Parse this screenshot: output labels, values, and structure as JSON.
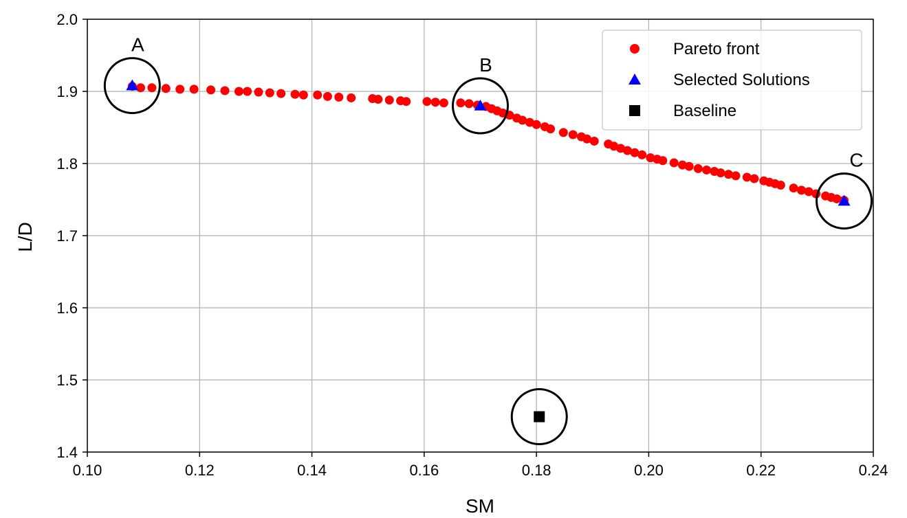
{
  "chart_data": {
    "type": "scatter",
    "title": "",
    "xlabel": "SM",
    "ylabel": "L/D",
    "xlim": [
      0.1,
      0.24
    ],
    "ylim": [
      1.4,
      2.0
    ],
    "xticks": [
      "0.10",
      "0.12",
      "0.14",
      "0.16",
      "0.18",
      "0.20",
      "0.22",
      "0.24"
    ],
    "yticks": [
      "1.4",
      "1.5",
      "1.6",
      "1.7",
      "1.8",
      "1.9",
      "2.0"
    ],
    "grid": true,
    "legend_position": "top-right",
    "colors": {
      "pareto": "#ff0000",
      "selected": "#0000ff",
      "baseline": "#000000"
    },
    "series": [
      {
        "name": "Pareto front",
        "marker": "circle",
        "x": [
          0.108,
          0.1095,
          0.1115,
          0.114,
          0.1165,
          0.119,
          0.122,
          0.1245,
          0.127,
          0.1285,
          0.1305,
          0.1325,
          0.1345,
          0.137,
          0.1385,
          0.141,
          0.1428,
          0.1448,
          0.147,
          0.1508,
          0.1518,
          0.1538,
          0.1558,
          0.1568,
          0.1605,
          0.162,
          0.1635,
          0.1665,
          0.168,
          0.1695,
          0.171,
          0.172,
          0.173,
          0.174,
          0.1752,
          0.1765,
          0.1775,
          0.1788,
          0.18,
          0.1815,
          0.1825,
          0.1848,
          0.1865,
          0.188,
          0.189,
          0.1903,
          0.1928,
          0.1938,
          0.195,
          0.1962,
          0.1975,
          0.1988,
          0.2003,
          0.2015,
          0.2025,
          0.2045,
          0.206,
          0.2072,
          0.2088,
          0.2103,
          0.2117,
          0.2128,
          0.2142,
          0.2155,
          0.2175,
          0.2188,
          0.2205,
          0.2215,
          0.2225,
          0.2235,
          0.2258,
          0.2272,
          0.2285,
          0.2298,
          0.2315,
          0.2325,
          0.2335,
          0.2348
        ],
        "y": [
          1.907,
          1.905,
          1.905,
          1.904,
          1.903,
          1.903,
          1.902,
          1.901,
          1.9,
          1.9,
          1.899,
          1.898,
          1.897,
          1.896,
          1.895,
          1.895,
          1.893,
          1.892,
          1.891,
          1.89,
          1.889,
          1.888,
          1.887,
          1.886,
          1.886,
          1.885,
          1.884,
          1.884,
          1.883,
          1.881,
          1.879,
          1.876,
          1.873,
          1.87,
          1.867,
          1.863,
          1.86,
          1.857,
          1.854,
          1.851,
          1.848,
          1.843,
          1.84,
          1.837,
          1.834,
          1.831,
          1.827,
          1.824,
          1.821,
          1.818,
          1.815,
          1.812,
          1.808,
          1.806,
          1.804,
          1.801,
          1.798,
          1.796,
          1.793,
          1.791,
          1.789,
          1.787,
          1.785,
          1.783,
          1.781,
          1.779,
          1.776,
          1.774,
          1.772,
          1.77,
          1.766,
          1.763,
          1.761,
          1.758,
          1.755,
          1.753,
          1.751,
          1.749
        ]
      },
      {
        "name": "Selected Solutions",
        "marker": "triangle",
        "x": [
          0.108,
          0.17,
          0.2348
        ],
        "y": [
          1.908,
          1.88,
          1.748
        ]
      },
      {
        "name": "Baseline",
        "marker": "square",
        "x": [
          0.1805
        ],
        "y": [
          1.449
        ]
      }
    ],
    "annotations": [
      {
        "label": "A",
        "x": 0.108,
        "y": 1.908
      },
      {
        "label": "B",
        "x": 0.17,
        "y": 1.88
      },
      {
        "label": "C",
        "x": 0.2348,
        "y": 1.748
      },
      {
        "label": "",
        "x": 0.1805,
        "y": 1.449
      }
    ]
  }
}
